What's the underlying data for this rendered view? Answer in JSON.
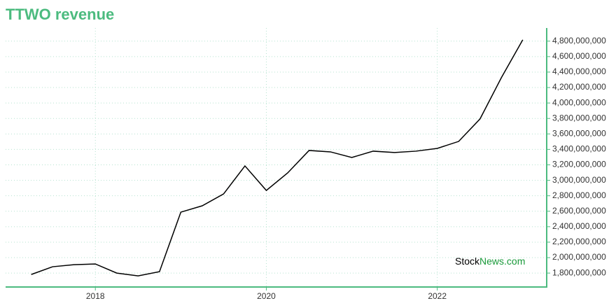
{
  "chart_data": {
    "type": "line",
    "title": "TTWO revenue",
    "x": [
      2017.25,
      2017.5,
      2017.75,
      2018,
      2018.25,
      2018.5,
      2018.75,
      2019,
      2019.25,
      2019.5,
      2019.75,
      2020,
      2020.25,
      2020.5,
      2020.75,
      2021,
      2021.25,
      2021.5,
      2021.75,
      2022,
      2022.25,
      2022.5,
      2022.75,
      2023
    ],
    "series": [
      {
        "name": "TTWO revenue",
        "color": "#000000",
        "values": [
          1782000000,
          1882000000,
          1909000000,
          1918000000,
          1800000000,
          1764000000,
          1818000000,
          2588000000,
          2670000000,
          2824000000,
          3186000000,
          2869000000,
          3096000000,
          3386000000,
          3368000000,
          3295000000,
          3377000000,
          3359000000,
          3377000000,
          3413000000,
          3503000000,
          3794000000,
          4328000000,
          4817000000
        ]
      }
    ],
    "xlim": [
      2016.95,
      2023.28
    ],
    "xticks": [
      2018,
      2020,
      2022
    ],
    "ylim": [
      1620000000,
      4970000000
    ],
    "yticks": [
      {
        "value": 1800000000,
        "label": "1,800,000,000"
      },
      {
        "value": 2000000000,
        "label": "2,000,000,000"
      },
      {
        "value": 2200000000,
        "label": "2,200,000,000"
      },
      {
        "value": 2400000000,
        "label": "2,400,000,000"
      },
      {
        "value": 2600000000,
        "label": "2,600,000,000"
      },
      {
        "value": 2800000000,
        "label": "2,800,000,000"
      },
      {
        "value": 3000000000,
        "label": "3,000,000,000"
      },
      {
        "value": 3200000000,
        "label": "3,200,000,000"
      },
      {
        "value": 3400000000,
        "label": "3,400,000,000"
      },
      {
        "value": 3600000000,
        "label": "3,600,000,000"
      },
      {
        "value": 3800000000,
        "label": "3,800,000,000"
      },
      {
        "value": 4000000000,
        "label": "4,000,000,000"
      },
      {
        "value": 4200000000,
        "label": "4,200,000,000"
      },
      {
        "value": 4400000000,
        "label": "4,400,000,000"
      },
      {
        "value": 4600000000,
        "label": "4,600,000,000"
      },
      {
        "value": 4800000000,
        "label": "4,800,000,000"
      }
    ],
    "grid": true,
    "watermark": [
      "Stock",
      "News.com"
    ]
  }
}
